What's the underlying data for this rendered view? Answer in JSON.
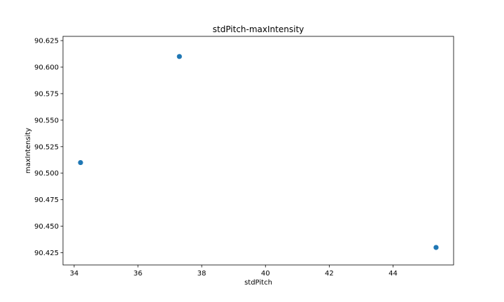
{
  "chart_data": {
    "type": "scatter",
    "title": "stdPitch-maxIntensity",
    "xlabel": "stdPitch",
    "ylabel": "maxIntensity",
    "xlim": [
      33.65,
      45.9
    ],
    "ylim": [
      90.4135,
      90.629
    ],
    "xticks": [
      34,
      36,
      38,
      40,
      42,
      44
    ],
    "xtick_labels": [
      "34",
      "36",
      "38",
      "40",
      "42",
      "44"
    ],
    "yticks": [
      90.425,
      90.45,
      90.475,
      90.5,
      90.525,
      90.55,
      90.575,
      90.6,
      90.625
    ],
    "ytick_labels": [
      "90.425",
      "90.450",
      "90.475",
      "90.500",
      "90.525",
      "90.550",
      "90.575",
      "90.600",
      "90.625"
    ],
    "grid": false,
    "series": [
      {
        "x": [
          34.2,
          37.3,
          45.35
        ],
        "y": [
          90.51,
          90.61,
          90.43
        ],
        "color": "#1f77b4"
      }
    ]
  }
}
